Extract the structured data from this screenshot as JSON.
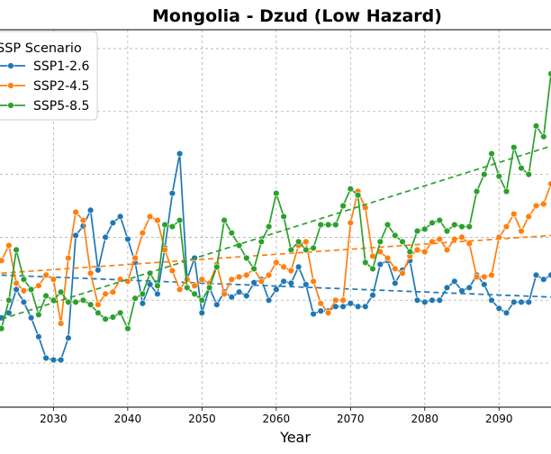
{
  "chart_data": {
    "type": "line",
    "title": "Mongolia - Dzud (Low Hazard)",
    "xlabel": "Year",
    "ylabel": "",
    "x_ticks": [
      2030,
      2040,
      2050,
      2060,
      2070,
      2080,
      2090
    ],
    "grid": true,
    "legend": {
      "title": "SSP Scenario",
      "placement": "top-left"
    },
    "xlim": [
      2022.8,
      2097
    ],
    "ylim": [
      0.3,
      6.3
    ],
    "x": [
      2023,
      2024,
      2025,
      2026,
      2027,
      2028,
      2029,
      2030,
      2031,
      2032,
      2033,
      2034,
      2035,
      2036,
      2037,
      2038,
      2039,
      2040,
      2041,
      2042,
      2043,
      2044,
      2045,
      2046,
      2047,
      2048,
      2049,
      2050,
      2051,
      2052,
      2053,
      2054,
      2055,
      2056,
      2057,
      2058,
      2059,
      2060,
      2061,
      2062,
      2063,
      2064,
      2065,
      2066,
      2067,
      2068,
      2069,
      2070,
      2071,
      2072,
      2073,
      2074,
      2075,
      2076,
      2077,
      2078,
      2079,
      2080,
      2081,
      2082,
      2083,
      2084,
      2085,
      2086,
      2087,
      2088,
      2089,
      2090,
      2091,
      2092,
      2093,
      2094,
      2095,
      2096,
      2097
    ],
    "series": [
      {
        "name": "SSP1-2.6",
        "color": "#1f77b4",
        "trend": [
          2.4,
          2.05
        ],
        "values": [
          1.72,
          1.8,
          2.17,
          1.97,
          1.72,
          1.42,
          1.08,
          1.05,
          1.05,
          1.4,
          3.03,
          3.18,
          3.43,
          2.48,
          3.0,
          3.23,
          3.33,
          2.97,
          2.6,
          1.95,
          2.25,
          2.1,
          2.83,
          3.7,
          4.33,
          2.33,
          2.67,
          1.8,
          2.2,
          1.93,
          2.13,
          2.05,
          2.13,
          2.07,
          2.28,
          2.33,
          2.0,
          2.17,
          2.3,
          2.27,
          2.53,
          2.25,
          1.78,
          1.83,
          1.83,
          1.9,
          1.9,
          1.95,
          1.9,
          1.9,
          2.08,
          2.57,
          2.63,
          2.27,
          2.48,
          2.63,
          2.0,
          1.97,
          2.0,
          2.0,
          2.2,
          2.3,
          2.15,
          2.2,
          2.4,
          2.25,
          2.0,
          1.87,
          1.8,
          1.97,
          1.97,
          1.97,
          2.4,
          2.33,
          2.4
        ]
      },
      {
        "name": "SSP2-4.5",
        "color": "#ff7f0e",
        "trend": [
          2.43,
          3.03
        ],
        "values": [
          2.63,
          2.87,
          2.27,
          2.15,
          2.17,
          2.23,
          2.4,
          2.33,
          1.63,
          2.67,
          3.4,
          3.27,
          2.43,
          1.93,
          2.1,
          2.13,
          2.33,
          2.3,
          2.67,
          3.07,
          3.33,
          3.27,
          2.8,
          2.47,
          2.17,
          2.33,
          2.23,
          2.33,
          2.27,
          2.57,
          2.1,
          2.33,
          2.37,
          2.4,
          2.5,
          2.3,
          2.4,
          2.6,
          2.53,
          2.47,
          2.87,
          2.93,
          2.3,
          1.95,
          1.8,
          2.0,
          2.0,
          3.23,
          3.73,
          3.47,
          2.7,
          2.77,
          2.67,
          2.5,
          2.43,
          2.7,
          2.8,
          2.77,
          2.93,
          2.97,
          2.8,
          2.97,
          3.0,
          2.9,
          2.37,
          2.37,
          2.4,
          3.0,
          3.17,
          3.37,
          3.1,
          3.33,
          3.5,
          3.53,
          3.85
        ]
      },
      {
        "name": "SSP5-8.5",
        "color": "#2ca02c",
        "trend": [
          1.7,
          4.45
        ],
        "values": [
          1.55,
          2.0,
          2.8,
          2.33,
          2.17,
          1.77,
          2.07,
          2.0,
          2.13,
          1.97,
          1.97,
          2.0,
          1.93,
          1.8,
          1.7,
          1.73,
          1.8,
          1.55,
          2.03,
          2.1,
          2.43,
          2.23,
          3.2,
          3.17,
          3.27,
          2.2,
          2.1,
          2.0,
          2.2,
          2.53,
          3.27,
          3.07,
          2.87,
          2.67,
          2.5,
          2.93,
          3.17,
          3.7,
          3.33,
          2.8,
          2.93,
          2.8,
          2.83,
          3.2,
          3.2,
          3.2,
          3.5,
          3.77,
          3.67,
          2.6,
          2.5,
          2.93,
          3.2,
          3.03,
          2.93,
          2.77,
          3.1,
          3.13,
          3.23,
          3.27,
          3.1,
          3.2,
          3.17,
          3.17,
          3.73,
          4.0,
          4.33,
          3.97,
          3.73,
          4.43,
          4.1,
          4.0,
          4.77,
          4.6,
          5.6
        ]
      }
    ]
  }
}
